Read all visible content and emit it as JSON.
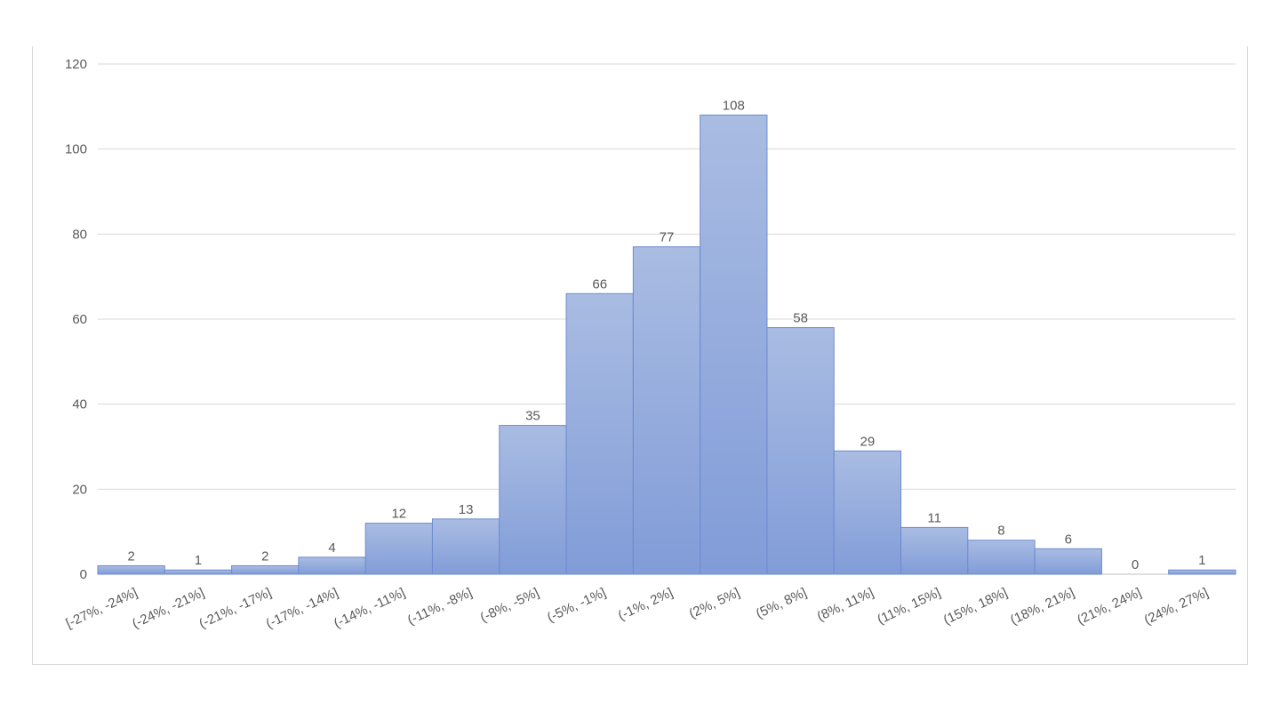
{
  "chart_data": {
    "type": "bar",
    "categories": [
      "[-27%, -24%]",
      "(-24%, -21%]",
      "(-21%, -17%]",
      "(-17%, -14%]",
      "(-14%, -11%]",
      "(-11%, -8%]",
      "(-8%, -5%]",
      "(-5%, -1%]",
      "(-1%, 2%]",
      "(2%, 5%]",
      "(5%, 8%]",
      "(8%, 11%]",
      "(11%, 15%]",
      "(15%, 18%]",
      "(18%, 21%]",
      "(21%, 24%]",
      "(24%, 27%]"
    ],
    "values": [
      2,
      1,
      2,
      4,
      12,
      13,
      35,
      66,
      77,
      108,
      58,
      29,
      11,
      8,
      6,
      0,
      1
    ],
    "ylim": [
      0,
      120
    ],
    "yticks": [
      0,
      20,
      40,
      60,
      80,
      100,
      120
    ],
    "grid": true,
    "bar_color": "#8aa2d8",
    "bar_color_top": "#a9bce2",
    "bar_border": "#6f8bd0",
    "data_labels": true
  }
}
